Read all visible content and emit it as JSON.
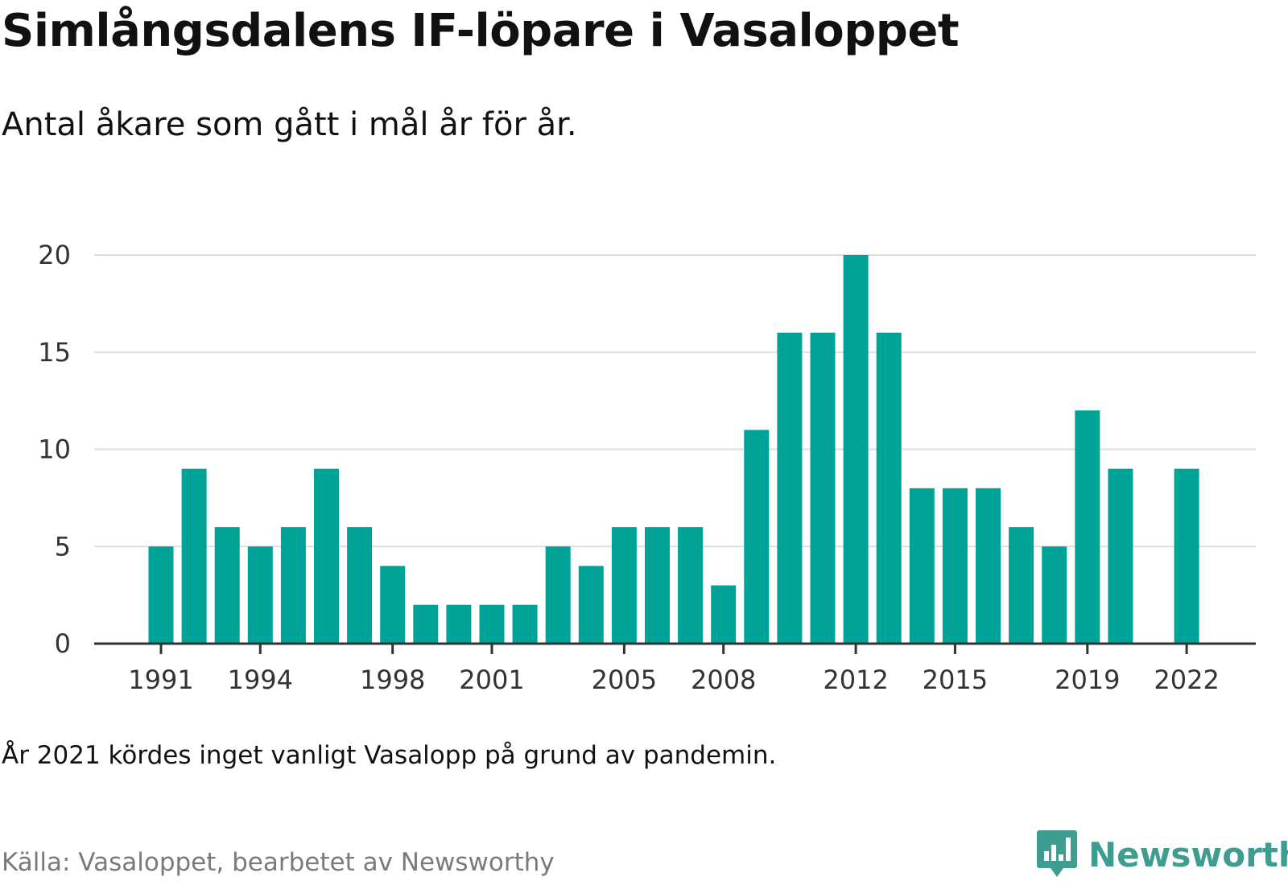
{
  "title": "Simlångsdalens IF-löpare i Vasaloppet",
  "subtitle": "Antal åkare som gått i mål år för år.",
  "note": "År 2021 kördes inget vanligt Vasalopp på grund av pandemin.",
  "source": "Källa: Vasaloppet, bearbetet av Newsworthy",
  "brand": {
    "name": "Newsworthy",
    "icon": "newsworthy-chart-bubble-icon",
    "color": "#3f9c90"
  },
  "colors": {
    "bar": "#00a398",
    "grid": "#dddddd",
    "axis": "#333333",
    "tick_text": "#333333"
  },
  "chart_data": {
    "type": "bar",
    "title": "Simlångsdalens IF-löpare i Vasaloppet",
    "subtitle": "Antal åkare som gått i mål år för år.",
    "xlabel": "",
    "ylabel": "",
    "categories": [
      1991,
      1992,
      1993,
      1994,
      1995,
      1996,
      1997,
      1998,
      1999,
      2000,
      2001,
      2002,
      2003,
      2004,
      2005,
      2006,
      2007,
      2008,
      2009,
      2010,
      2011,
      2012,
      2013,
      2014,
      2015,
      2016,
      2017,
      2018,
      2019,
      2020,
      2021,
      2022
    ],
    "values": [
      5,
      9,
      6,
      5,
      6,
      9,
      6,
      4,
      2,
      2,
      2,
      2,
      5,
      4,
      6,
      6,
      6,
      3,
      11,
      16,
      16,
      20,
      16,
      8,
      8,
      8,
      6,
      5,
      12,
      9,
      null,
      9
    ],
    "x_tick_labels": [
      "1991",
      "1994",
      "1998",
      "2001",
      "2005",
      "2008",
      "2012",
      "2015",
      "2019",
      "2022"
    ],
    "y_ticks": [
      0,
      5,
      10,
      15,
      20
    ],
    "ylim": [
      0,
      20
    ],
    "grid": "horizontal",
    "legend": "none"
  }
}
